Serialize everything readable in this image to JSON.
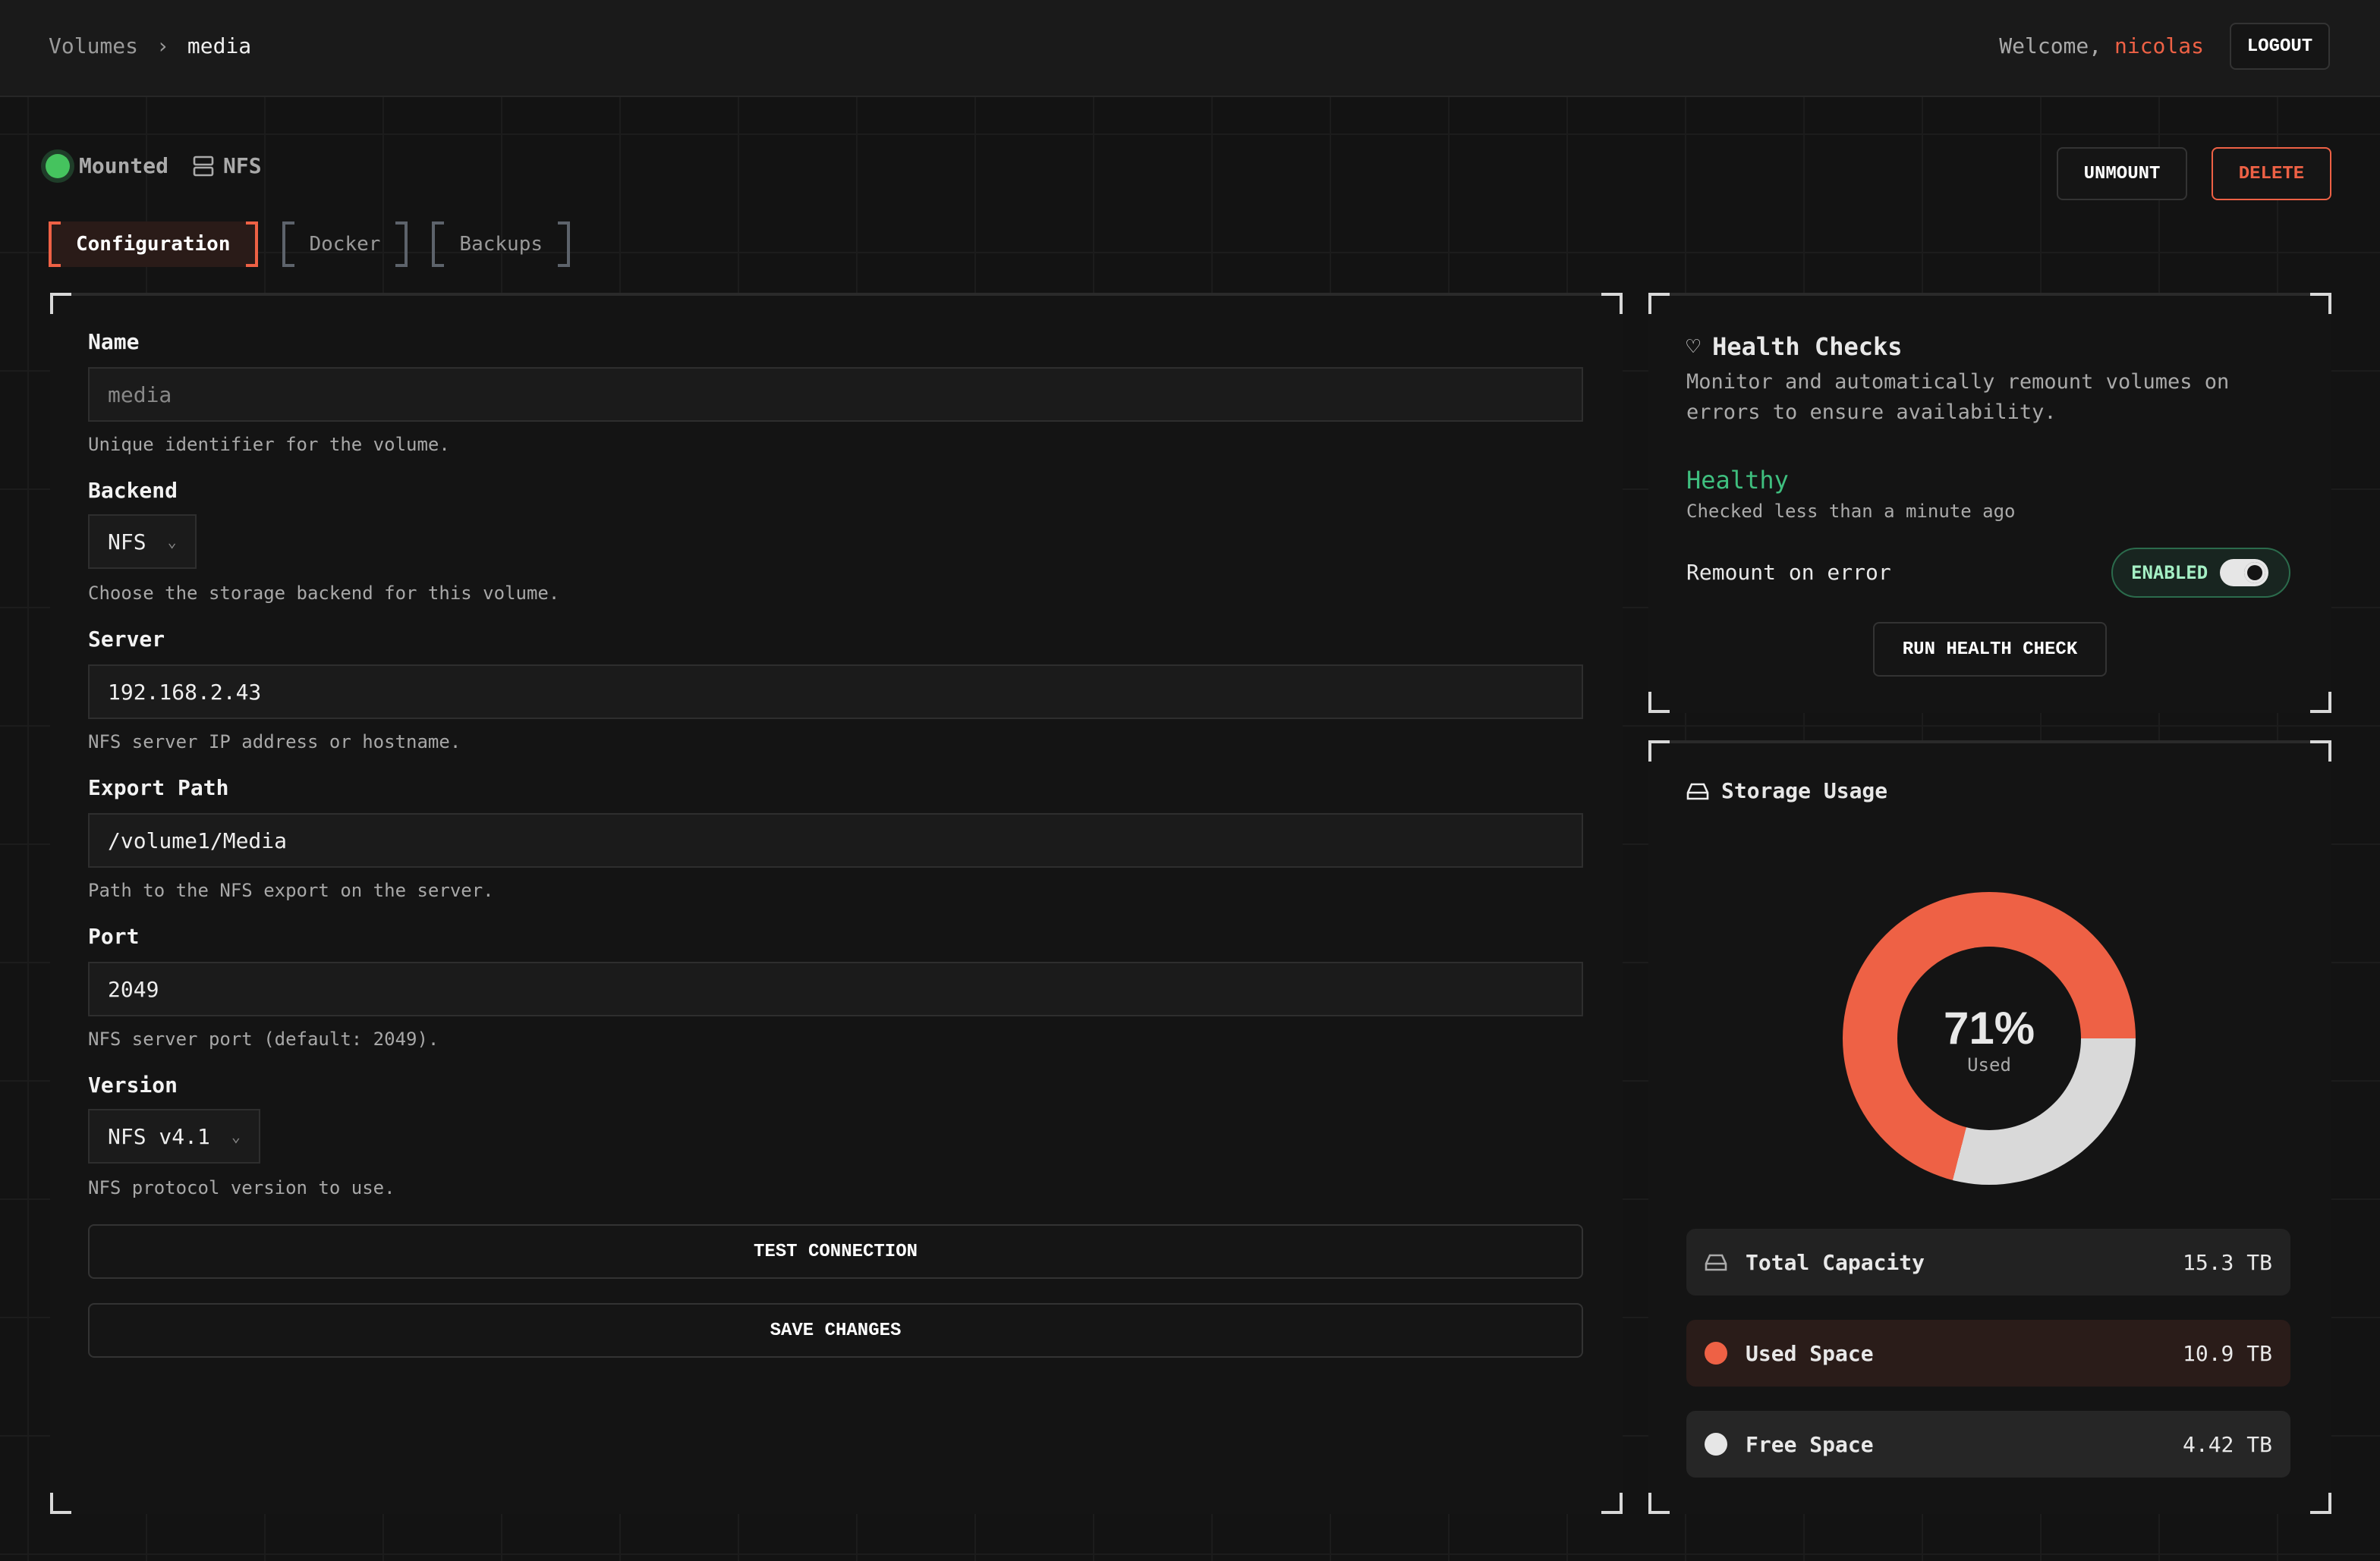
{
  "header": {
    "breadcrumb": [
      "Volumes",
      "media"
    ],
    "welcome": "Welcome,",
    "username": "nicolas",
    "logout": "LOGOUT"
  },
  "status": {
    "mounted": "Mounted",
    "backend": "NFS",
    "unmount": "UNMOUNT",
    "delete": "DELETE"
  },
  "tabs": [
    "Configuration",
    "Docker",
    "Backups"
  ],
  "form": {
    "name": {
      "label": "Name",
      "value": "media",
      "help": "Unique identifier for the volume."
    },
    "backend": {
      "label": "Backend",
      "value": "NFS",
      "help": "Choose the storage backend for this volume."
    },
    "server": {
      "label": "Server",
      "value": "192.168.2.43",
      "help": "NFS server IP address or hostname."
    },
    "export": {
      "label": "Export Path",
      "value": "/volume1/Media",
      "help": "Path to the NFS export on the server."
    },
    "port": {
      "label": "Port",
      "value": "2049",
      "help": "NFS server port (default: 2049)."
    },
    "version": {
      "label": "Version",
      "value": "NFS v4.1",
      "help": "NFS protocol version to use."
    },
    "test": "TEST CONNECTION",
    "save": "SAVE CHANGES"
  },
  "health": {
    "title": "Health Checks",
    "desc": "Monitor and automatically remount volumes on errors to ensure availability.",
    "status": "Healthy",
    "checked": "Checked less than a minute ago",
    "remount": "Remount on error",
    "toggle": "ENABLED",
    "toggle_on": true,
    "run": "RUN HEALTH CHECK"
  },
  "storage": {
    "title": "Storage Usage",
    "percent": "71%",
    "percent_value": 71,
    "used_label": "Used",
    "rows": [
      {
        "label": "Total Capacity",
        "value": "15.3 TB"
      },
      {
        "label": "Used Space",
        "value": "10.9 TB"
      },
      {
        "label": "Free Space",
        "value": "4.42 TB"
      }
    ],
    "colors": {
      "used": "#ee6145",
      "free": "#d9d9d9",
      "healthy": "#3fbf7f"
    }
  }
}
